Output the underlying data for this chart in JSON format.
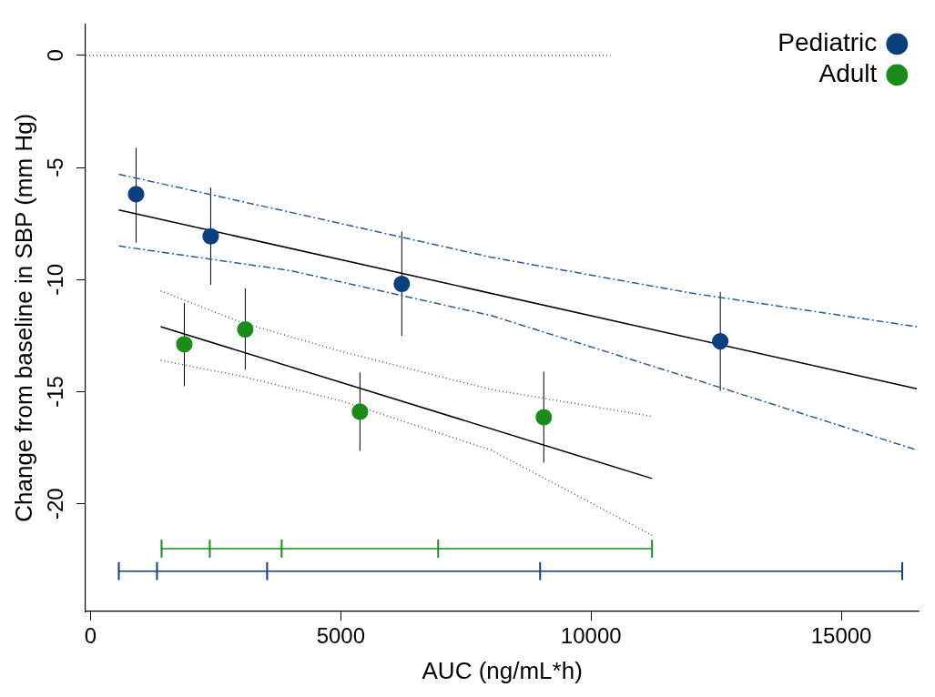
{
  "chart_data": {
    "type": "scatter",
    "xlabel": "AUC (ng/mL*h)",
    "ylabel": "Change from baseline in SBP (mm Hg)",
    "xlim": [
      -100,
      16550
    ],
    "ylim": [
      -24.8,
      1.4
    ],
    "xticks": [
      0,
      5000,
      10000,
      15000
    ],
    "yticks": [
      0,
      -5,
      -10,
      -15,
      -20
    ],
    "grid": false,
    "legend": "top right",
    "marker": "circle",
    "ref_lines": [
      {
        "axis": "y",
        "value": 0,
        "color": "#333333",
        "line_style": "dotted"
      }
    ],
    "series": [
      {
        "name": "Pediatric",
        "color": "#0b3f7e",
        "x": [
          909,
          2400,
          6218,
          12582
        ],
        "values": [
          -6.19,
          -8.07,
          -10.19,
          -12.75
        ],
        "errors": [
          [
            -8.35,
            -4.12
          ],
          [
            -10.23,
            -5.9
          ],
          [
            -12.51,
            -7.86
          ],
          [
            -14.96,
            -10.55
          ]
        ]
      },
      {
        "name": "Adult",
        "color": "#1a8c1a",
        "x": [
          1873,
          3091,
          5382,
          9055
        ],
        "values": [
          -12.88,
          -12.22,
          -15.89,
          -16.14
        ],
        "errors": [
          [
            -14.75,
            -11.04
          ],
          [
            -14.02,
            -10.39
          ],
          [
            -17.64,
            -14.14
          ],
          [
            -18.17,
            -14.1
          ]
        ]
      },
      {
        "type": "line",
        "marker": "none",
        "line_style": "solid",
        "color": "#000000",
        "x": [
          564,
          16509
        ],
        "values": [
          -6.89,
          -14.87
        ]
      },
      {
        "type": "line",
        "marker": "none",
        "line_style": "dashed",
        "color": "#2a5a9a",
        "x": [
          564,
          4000,
          8000,
          12000,
          16509
        ],
        "values": [
          -5.3,
          -7.0,
          -9.0,
          -10.6,
          -12.1
        ]
      },
      {
        "type": "line",
        "marker": "none",
        "line_style": "dashed",
        "color": "#2a5a9a",
        "x": [
          564,
          4000,
          8000,
          12000,
          16509
        ],
        "values": [
          -8.5,
          -9.6,
          -11.6,
          -14.4,
          -17.6
        ]
      },
      {
        "type": "line",
        "marker": "none",
        "line_style": "solid",
        "color": "#000000",
        "x": [
          1400,
          11218
        ],
        "values": [
          -12.1,
          -18.87
        ]
      },
      {
        "type": "line",
        "marker": "none",
        "line_style": "dotted",
        "color": "#2a5a9a",
        "x": [
          1400,
          3000,
          5000,
          8000,
          11218
        ],
        "values": [
          -10.5,
          -11.9,
          -13.2,
          -14.9,
          -16.1
        ]
      },
      {
        "type": "line",
        "marker": "none",
        "line_style": "dotted",
        "color": "#2a5a9a",
        "x": [
          1400,
          3000,
          5000,
          8000,
          11218
        ],
        "values": [
          -13.6,
          -14.3,
          -15.4,
          -17.6,
          -21.4
        ]
      },
      {
        "type": "line",
        "marker": "none",
        "line_style": "solid",
        "color": "#1a8c1a",
        "x": [
          1418,
          2382,
          3818,
          6945,
          11218
        ],
        "values": [
          -22,
          -22,
          -22,
          -22,
          -22
        ],
        "errors": [
          0.4,
          0.4,
          0.4,
          0.4,
          0.4
        ]
      },
      {
        "type": "line",
        "marker": "none",
        "line_style": "solid",
        "color": "#0b3f7e",
        "x": [
          564,
          1327,
          3527,
          8982,
          16218
        ],
        "values": [
          -23,
          -23,
          -23,
          -23,
          -23
        ],
        "errors": [
          0.4,
          0.4,
          0.4,
          0.4,
          0.4
        ]
      }
    ]
  }
}
